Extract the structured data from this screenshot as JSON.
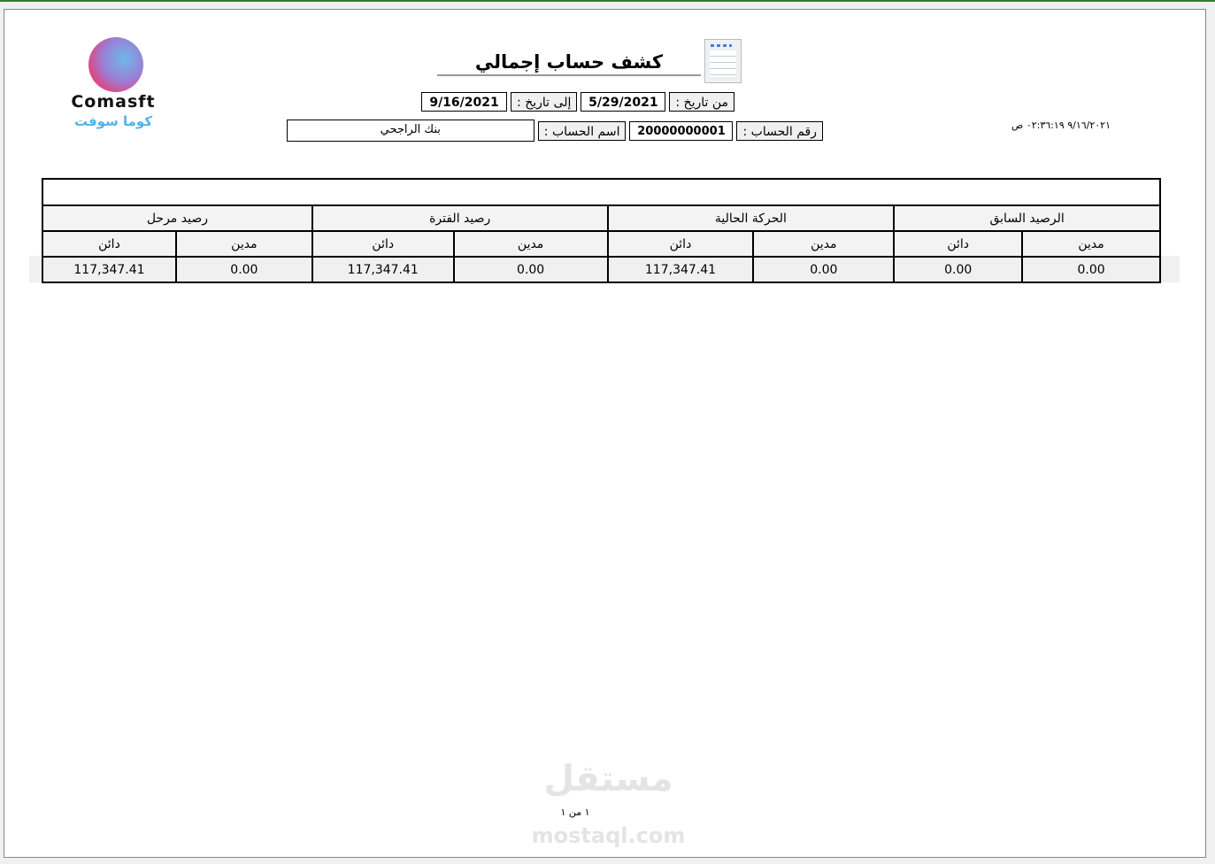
{
  "report": {
    "title": "كشف حساب إجمالي",
    "from_label": "من تاريخ :",
    "from_date": "5/29/2021",
    "to_label": "إلى تاريخ :",
    "to_date": "9/16/2021",
    "account_no_label": "رقم الحساب :",
    "account_no": "20000000001",
    "account_name_label": "اسم الحساب :",
    "account_name": "بنك الراجحي",
    "timestamp": "٩/١٦/٢٠٢١ ٠٢:٣٦:١٩ ص",
    "page_info": "١ من ١"
  },
  "logo": {
    "latin": "Comasft",
    "arabic": "كوما سوفت"
  },
  "watermark": {
    "arabic": "مستقل",
    "latin": "mostaql.com"
  },
  "table": {
    "groups": [
      "الرصيد السابق",
      "الحركة الحالية",
      "رصيد الفترة",
      "رصيد مرحل"
    ],
    "subheaders": [
      "مدين",
      "دائن",
      "مدين",
      "دائن",
      "مدين",
      "دائن",
      "مدين",
      "دائن"
    ],
    "row": [
      "0.00",
      "0.00",
      "0.00",
      "117,347.41",
      "0.00",
      "117,347.41",
      "0.00",
      "117,347.41"
    ]
  }
}
